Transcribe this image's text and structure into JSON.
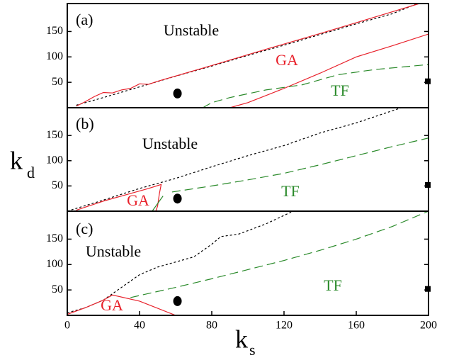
{
  "chart_data": [
    {
      "type": "line",
      "xlim": [
        0,
        200
      ],
      "ylim": [
        0,
        205
      ],
      "yticks": [
        50,
        100,
        150
      ],
      "annotations": [
        "(a)",
        "Unstable",
        "GA",
        "TF"
      ],
      "series": [
        {
          "color": "#000000",
          "style": "dotted",
          "x": [
            5,
            20,
            40,
            60,
            80,
            100,
            120,
            140,
            160,
            180,
            194
          ],
          "values": [
            5,
            20,
            41,
            62,
            82,
            103,
            123,
            144,
            165,
            185,
            205
          ]
        },
        {
          "color": "#e8202a",
          "style": "solid",
          "x": [
            5,
            10,
            15,
            20,
            25,
            30,
            35,
            40,
            45,
            50,
            80,
            110,
            140,
            170,
            195
          ],
          "values": [
            3,
            12,
            22,
            30,
            29,
            35,
            38,
            47,
            46,
            52,
            83,
            115,
            146,
            178,
            205
          ]
        },
        {
          "color": "#e8202a",
          "style": "solid",
          "x": [
            90,
            100,
            120,
            140,
            160,
            180,
            200
          ],
          "values": [
            0,
            10,
            38,
            68,
            100,
            122,
            145
          ]
        },
        {
          "color": "#2a8a2a",
          "style": "dashed",
          "x": [
            75,
            80,
            90,
            110,
            130,
            150,
            170,
            200
          ],
          "values": [
            0,
            10,
            20,
            35,
            45,
            65,
            75,
            85
          ]
        },
        {
          "color": "#000000",
          "style": "circle",
          "x": [
            61
          ],
          "values": [
            28
          ]
        },
        {
          "color": "#000000",
          "style": "square",
          "x": [
            200
          ],
          "values": [
            52
          ]
        }
      ]
    },
    {
      "type": "line",
      "xlim": [
        0,
        200
      ],
      "ylim": [
        0,
        205
      ],
      "yticks": [
        50,
        100,
        150
      ],
      "ylabel": "k",
      "ylabel_sub": "d",
      "annotations": [
        "(b)",
        "Unstable",
        "GA",
        "TF"
      ],
      "series": [
        {
          "color": "#000000",
          "style": "dotted",
          "x": [
            0,
            20,
            40,
            60,
            80,
            100,
            120,
            140,
            160,
            185
          ],
          "values": [
            0,
            22,
            45,
            65,
            88,
            110,
            130,
            155,
            175,
            205
          ]
        },
        {
          "color": "#e8202a",
          "style": "solid",
          "x": [
            5,
            20,
            35,
            45,
            52,
            51,
            50,
            49
          ],
          "values": [
            2,
            20,
            35,
            45,
            53,
            35,
            10,
            0
          ]
        },
        {
          "color": "#2a8a2a",
          "style": "solid",
          "x": [
            47,
            50,
            53
          ],
          "values": [
            0,
            15,
            30
          ]
        },
        {
          "color": "#2a8a2a",
          "style": "dashed",
          "x": [
            58,
            80,
            100,
            120,
            140,
            160,
            180,
            200
          ],
          "values": [
            38,
            50,
            62,
            75,
            92,
            110,
            128,
            145
          ]
        },
        {
          "color": "#000000",
          "style": "circle",
          "x": [
            61
          ],
          "values": [
            25
          ]
        },
        {
          "color": "#000000",
          "style": "square",
          "x": [
            200
          ],
          "values": [
            52
          ]
        }
      ]
    },
    {
      "type": "line",
      "xlim": [
        0,
        200
      ],
      "ylim": [
        0,
        205
      ],
      "yticks": [
        50,
        100,
        150
      ],
      "xticks": [
        0,
        40,
        80,
        120,
        160,
        200
      ],
      "xlabel": "k",
      "xlabel_sub": "s",
      "annotations": [
        "(c)",
        "Unstable",
        "GA",
        "TF"
      ],
      "series": [
        {
          "color": "#000000",
          "style": "dotted",
          "x": [
            0,
            10,
            20,
            30,
            40,
            50,
            60,
            70,
            80,
            85,
            95,
            110,
            125
          ],
          "values": [
            5,
            15,
            30,
            55,
            80,
            95,
            105,
            115,
            140,
            155,
            160,
            180,
            205
          ]
        },
        {
          "color": "#e8202a",
          "style": "solid",
          "x": [
            0,
            10,
            20,
            25,
            40,
            60
          ],
          "values": [
            2,
            15,
            30,
            40,
            28,
            0
          ]
        },
        {
          "color": "#2a8a2a",
          "style": "dashed",
          "x": [
            35,
            60,
            80,
            100,
            120,
            140,
            160,
            180,
            200
          ],
          "values": [
            35,
            55,
            72,
            90,
            108,
            128,
            150,
            175,
            205
          ]
        },
        {
          "color": "#000000",
          "style": "circle",
          "x": [
            61
          ],
          "values": [
            28
          ]
        },
        {
          "color": "#000000",
          "style": "square",
          "x": [
            200
          ],
          "values": [
            52
          ]
        }
      ]
    }
  ]
}
